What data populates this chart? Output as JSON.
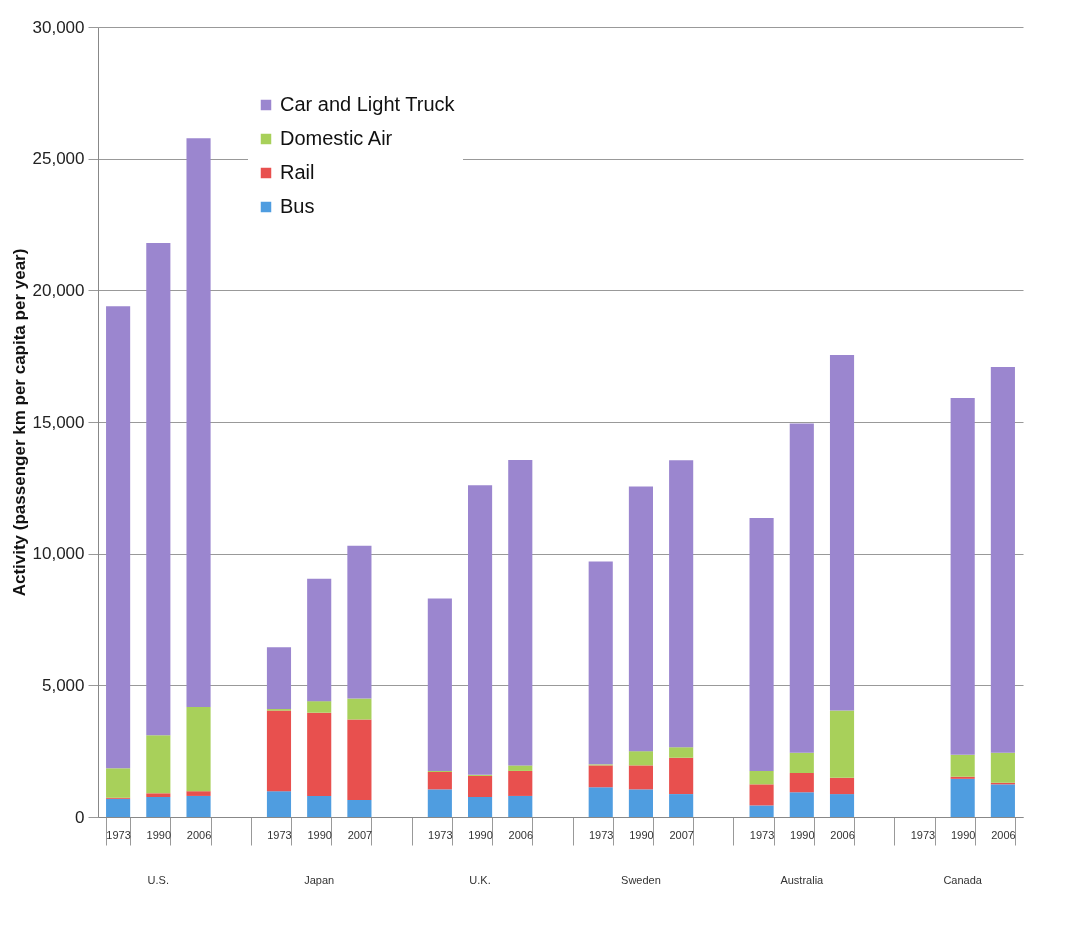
{
  "chart_data": {
    "type": "bar",
    "stacked": true,
    "ylabel": "Activity (passenger km per capita per year)",
    "categories": [
      "1973",
      "1990",
      "2006",
      null,
      "1973",
      "1990",
      "2007",
      null,
      "1973",
      "1990",
      "2006",
      null,
      "1973",
      "1990",
      "2007",
      null,
      "1973",
      "1990",
      "2006",
      null,
      "1973",
      "1990",
      "2006"
    ],
    "annotations": [
      "U.S.",
      "Japan",
      "U.K.",
      "Sweden",
      "Australia",
      "Canada"
    ],
    "series": [
      {
        "name": "Bus",
        "color": "#4f9de0",
        "values": [
          690,
          760,
          800,
          null,
          980,
          800,
          650,
          null,
          1050,
          760,
          800,
          null,
          1130,
          1050,
          870,
          null,
          440,
          940,
          870,
          null,
          null,
          1450,
          1240
        ]
      },
      {
        "name": "Rail",
        "color": "#e8504e",
        "values": [
          40,
          140,
          180,
          null,
          3060,
          3160,
          3050,
          null,
          660,
          800,
          950,
          null,
          830,
          910,
          1380,
          null,
          800,
          730,
          620,
          null,
          null,
          80,
          60
        ]
      },
      {
        "name": "Domestic Air",
        "color": "#a8d05a",
        "values": [
          1120,
          2200,
          3200,
          null,
          60,
          440,
          800,
          null,
          40,
          40,
          210,
          null,
          40,
          540,
          400,
          null,
          510,
          770,
          2550,
          null,
          null,
          830,
          1140
        ]
      },
      {
        "name": "Car and Light Truck",
        "color": "#9b86cf",
        "values": [
          17550,
          18700,
          21600,
          null,
          2350,
          4650,
          5800,
          null,
          6550,
          11000,
          11600,
          null,
          7700,
          10050,
          10900,
          null,
          9600,
          12500,
          13500,
          null,
          null,
          13550,
          14650
        ]
      }
    ],
    "ylim": [
      0,
      30000
    ],
    "yticks": [
      0,
      {
        "value": 5000,
        "label": "5,000"
      },
      {
        "value": 10000,
        "label": "10,000"
      },
      {
        "value": 15000,
        "label": "15,000"
      },
      {
        "value": 20000,
        "label": "20,000"
      },
      {
        "value": 25000,
        "label": "25,000"
      },
      {
        "value": 30000,
        "label": "30,000"
      }
    ],
    "grid": "y",
    "legend": "top left"
  }
}
